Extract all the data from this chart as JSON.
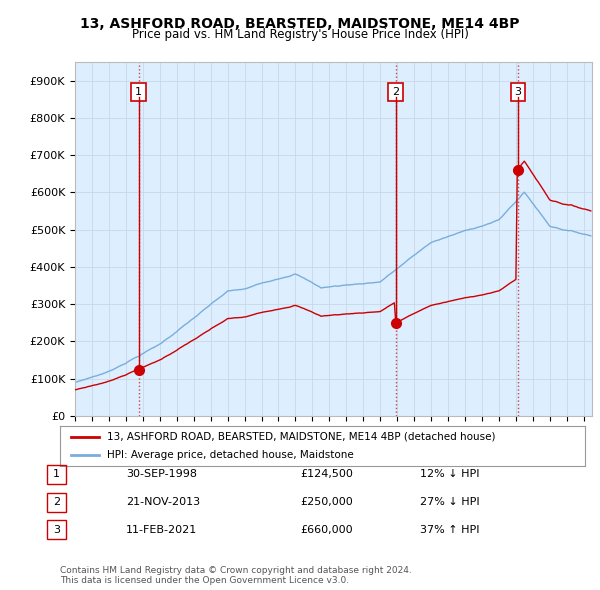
{
  "title": "13, ASHFORD ROAD, BEARSTED, MAIDSTONE, ME14 4BP",
  "subtitle": "Price paid vs. HM Land Registry's House Price Index (HPI)",
  "ylim": [
    0,
    950000
  ],
  "yticks": [
    0,
    100000,
    200000,
    300000,
    400000,
    500000,
    600000,
    700000,
    800000,
    900000
  ],
  "ytick_labels": [
    "£0",
    "£100K",
    "£200K",
    "£300K",
    "£400K",
    "£500K",
    "£600K",
    "£700K",
    "£800K",
    "£900K"
  ],
  "xlim_start": 1995.0,
  "xlim_end": 2025.5,
  "transactions": [
    {
      "date_num": 1998.75,
      "price": 124500,
      "label": "1"
    },
    {
      "date_num": 2013.92,
      "price": 250000,
      "label": "2"
    },
    {
      "date_num": 2021.12,
      "price": 660000,
      "label": "3"
    }
  ],
  "vline_color": "#cc4444",
  "marker_color": "#cc0000",
  "hpi_color": "#7aaddc",
  "price_line_color": "#cc0000",
  "chart_bg_color": "#ddeeff",
  "legend_label_price": "13, ASHFORD ROAD, BEARSTED, MAIDSTONE, ME14 4BP (detached house)",
  "legend_label_hpi": "HPI: Average price, detached house, Maidstone",
  "table_data": [
    [
      "1",
      "30-SEP-1998",
      "£124,500",
      "12% ↓ HPI"
    ],
    [
      "2",
      "21-NOV-2013",
      "£250,000",
      "27% ↓ HPI"
    ],
    [
      "3",
      "11-FEB-2021",
      "£660,000",
      "37% ↑ HPI"
    ]
  ],
  "footer": "Contains HM Land Registry data © Crown copyright and database right 2024.\nThis data is licensed under the Open Government Licence v3.0.",
  "background_color": "#ffffff",
  "grid_color": "#c8d8e8"
}
